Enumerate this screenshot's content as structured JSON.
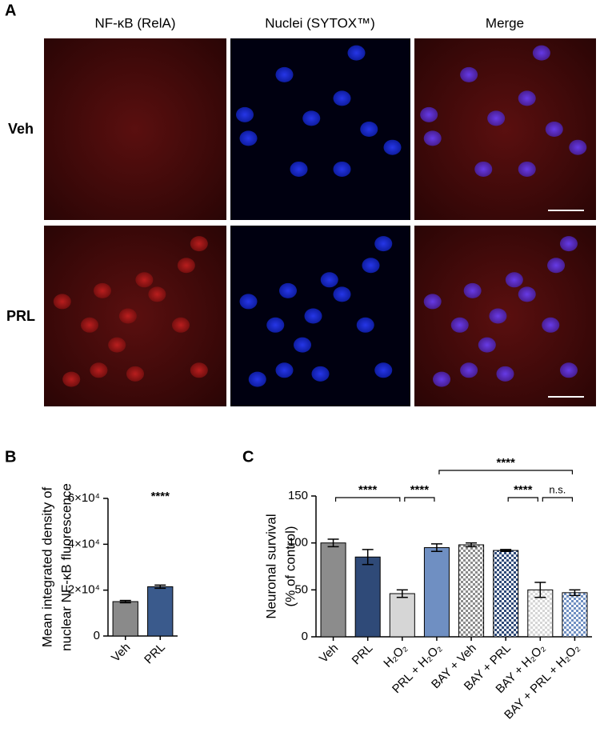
{
  "panel_labels": [
    "A",
    "B",
    "C"
  ],
  "image_panel": {
    "column_titles": [
      "NF-κB (RelA)",
      "Nuclei (SYTOX™)",
      "Merge"
    ],
    "row_labels": [
      "Veh",
      "PRL"
    ]
  },
  "chart_data": [
    {
      "type": "bar",
      "y_label": [
        "Mean integrated density of",
        "nuclear NF-κB fluorescence"
      ],
      "categories": [
        "Veh",
        "PRL"
      ],
      "values": [
        15000,
        21500
      ],
      "errors": [
        500,
        700
      ],
      "colors": [
        "#8a8a8a",
        "#3a5a8c"
      ],
      "ylim": [
        0,
        60000
      ],
      "yticks": [
        0,
        {
          "value": 20000,
          "label": "2×10⁴"
        },
        {
          "value": 40000,
          "label": "4×10⁴"
        },
        {
          "value": 60000,
          "label": "6×10⁴"
        }
      ],
      "annotations": [
        {
          "category": 1,
          "label": "****"
        }
      ]
    },
    {
      "type": "bar",
      "y_label": [
        "Neuronal survival",
        "(% of control)"
      ],
      "categories": [
        "Veh",
        "PRL",
        "H₂O₂",
        "PRL + H₂O₂",
        "BAY + Veh",
        "BAY + PRL",
        "BAY + H₂O₂",
        "BAY + PRL + H₂O₂"
      ],
      "values": [
        100,
        85,
        46,
        95,
        98,
        92,
        50,
        47
      ],
      "errors": [
        4,
        8,
        4,
        4,
        2,
        1,
        8,
        3
      ],
      "colors": [
        "#8c8c8c",
        "#2f4a78",
        "#d6d6d6",
        "#6f8fc2",
        "#8c8c8c",
        "#2f4a78",
        "#d6d6d6",
        "#6f8fc2"
      ],
      "checkered": [
        false,
        false,
        false,
        false,
        true,
        true,
        true,
        true
      ],
      "ylim": [
        0,
        150
      ],
      "yticks": [
        0,
        50,
        100,
        150
      ],
      "comparisons": [
        {
          "from": 0,
          "to": 2,
          "label": "****"
        },
        {
          "from": 2,
          "to": 3,
          "label": "****"
        },
        {
          "from": 3,
          "to": 7,
          "label": "****"
        },
        {
          "from": 5,
          "to": 6,
          "label": "****"
        },
        {
          "from": 6,
          "to": 7,
          "label": "n.s."
        }
      ]
    }
  ]
}
